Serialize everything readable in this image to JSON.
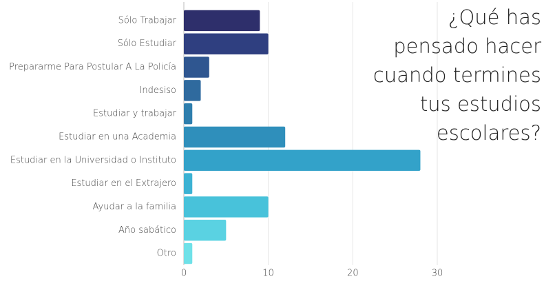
{
  "chart_data": {
    "type": "bar",
    "orientation": "horizontal",
    "title": "¿Qué has pensado hacer cuando termines tus estudios escolares?",
    "categories": [
      "Sólo Trabajar",
      "Sólo Estudiar",
      "Prepararme Para Postular A La Policía",
      "Indesiso",
      "Estudiar y trabajar",
      "Estudiar en una Academia",
      "Estudiar en la Universidad o Instituto",
      "Estudiar en el Extrajero",
      "Ayudar a la familia",
      "Año sabático",
      "Otro"
    ],
    "values": [
      9,
      10,
      3,
      2,
      1,
      12,
      28,
      1,
      10,
      5,
      1
    ],
    "colors": [
      "#2e2f6b",
      "#2f3f80",
      "#2f5690",
      "#2f6a9e",
      "#2e7ead",
      "#2f8fbb",
      "#33a2c9",
      "#3cb2d3",
      "#48c2da",
      "#5ad2e2",
      "#6fe1e8"
    ],
    "xlim": [
      0,
      30
    ],
    "xticks": [
      0,
      10,
      20,
      30
    ],
    "grid": true
  }
}
